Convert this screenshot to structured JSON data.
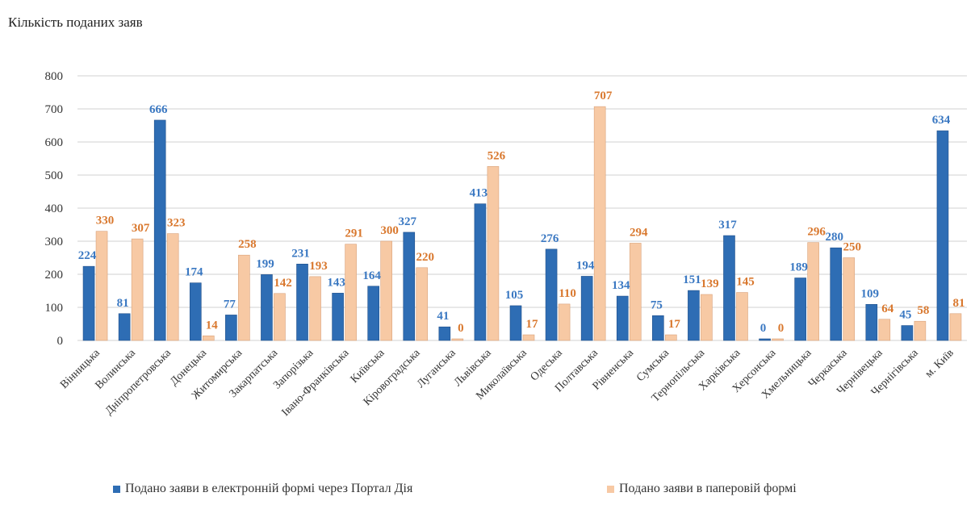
{
  "chart_data": {
    "type": "bar",
    "title": "Кількість поданих заяв",
    "categories": [
      "Вінницька",
      "Волинська",
      "Дніпропетровська",
      "Донецька",
      "Житомирська",
      "Закарпатська",
      "Запорізька",
      "Івано-Франківська",
      "Київська",
      "Кіровоградська",
      "Луганська",
      "Львівська",
      "Миколаївська",
      "Одеська",
      "Полтавська",
      "Рівненська",
      "Сумська",
      "Тернопільська",
      "Харківська",
      "Херсонська",
      "Хмельницька",
      "Черкаська",
      "Чернівецька",
      "Чернігівська",
      "м. Київ"
    ],
    "series": [
      {
        "name": "Подано заяви в електронній формі через Портал Дія",
        "values": [
          224,
          81,
          666,
          174,
          77,
          199,
          231,
          143,
          164,
          327,
          41,
          413,
          105,
          276,
          194,
          134,
          75,
          151,
          317,
          0,
          189,
          280,
          109,
          45,
          634
        ]
      },
      {
        "name": "Подано заяви в паперовій формі",
        "values": [
          330,
          307,
          323,
          14,
          258,
          142,
          193,
          291,
          300,
          220,
          0,
          526,
          17,
          110,
          707,
          294,
          17,
          139,
          145,
          0,
          296,
          250,
          64,
          58,
          81
        ]
      }
    ],
    "ylim": [
      0,
      800
    ],
    "yticks": [
      0,
      100,
      200,
      300,
      400,
      500,
      600,
      700,
      800
    ],
    "grid": true,
    "legend_position": "bottom",
    "colors": {
      "electronic": "#2e6db4",
      "paper": "#f7c9a4",
      "electronic_label": "#3a78c2",
      "paper_label": "#d9782e",
      "grid": "#d9d9d9"
    }
  }
}
